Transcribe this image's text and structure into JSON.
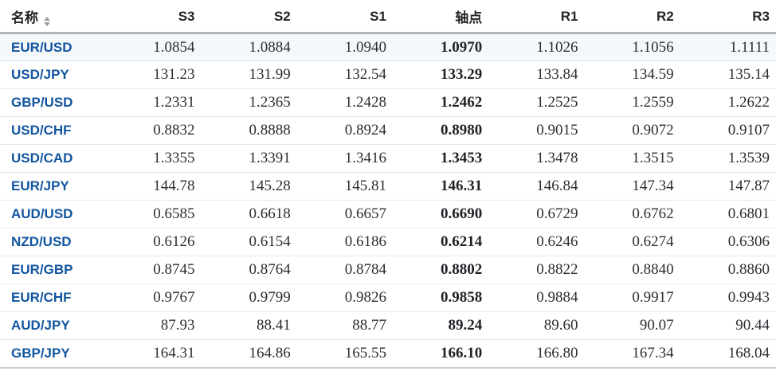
{
  "ui_state": {
    "highlighted_row": "EUR/USD"
  },
  "colors": {
    "pair_link": "#1256a0",
    "header_text": "#232526",
    "number_text": "#2b2e33",
    "header_border": "#b0b3b8",
    "row_divider": "#e6e8ea"
  },
  "table": {
    "columns": [
      {
        "key": "name",
        "label": "名称",
        "sortable_icon": "sort-arrows-icon"
      },
      {
        "key": "s3",
        "label": "S3"
      },
      {
        "key": "s2",
        "label": "S2"
      },
      {
        "key": "s1",
        "label": "S1"
      },
      {
        "key": "pivot",
        "label": "轴点"
      },
      {
        "key": "r1",
        "label": "R1"
      },
      {
        "key": "r2",
        "label": "R2"
      },
      {
        "key": "r3",
        "label": "R3"
      }
    ],
    "rows": [
      {
        "name": "EUR/USD",
        "values": [
          "1.0854",
          "1.0884",
          "1.0940",
          "1.0970",
          "1.1026",
          "1.1056",
          "1.1111"
        ]
      },
      {
        "name": "USD/JPY",
        "values": [
          "131.23",
          "131.99",
          "132.54",
          "133.29",
          "133.84",
          "134.59",
          "135.14"
        ]
      },
      {
        "name": "GBP/USD",
        "values": [
          "1.2331",
          "1.2365",
          "1.2428",
          "1.2462",
          "1.2525",
          "1.2559",
          "1.2622"
        ]
      },
      {
        "name": "USD/CHF",
        "values": [
          "0.8832",
          "0.8888",
          "0.8924",
          "0.8980",
          "0.9015",
          "0.9072",
          "0.9107"
        ]
      },
      {
        "name": "USD/CAD",
        "values": [
          "1.3355",
          "1.3391",
          "1.3416",
          "1.3453",
          "1.3478",
          "1.3515",
          "1.3539"
        ]
      },
      {
        "name": "EUR/JPY",
        "values": [
          "144.78",
          "145.28",
          "145.81",
          "146.31",
          "146.84",
          "147.34",
          "147.87"
        ]
      },
      {
        "name": "AUD/USD",
        "values": [
          "0.6585",
          "0.6618",
          "0.6657",
          "0.6690",
          "0.6729",
          "0.6762",
          "0.6801"
        ]
      },
      {
        "name": "NZD/USD",
        "values": [
          "0.6126",
          "0.6154",
          "0.6186",
          "0.6214",
          "0.6246",
          "0.6274",
          "0.6306"
        ]
      },
      {
        "name": "EUR/GBP",
        "values": [
          "0.8745",
          "0.8764",
          "0.8784",
          "0.8802",
          "0.8822",
          "0.8840",
          "0.8860"
        ]
      },
      {
        "name": "EUR/CHF",
        "values": [
          "0.9767",
          "0.9799",
          "0.9826",
          "0.9858",
          "0.9884",
          "0.9917",
          "0.9943"
        ]
      },
      {
        "name": "AUD/JPY",
        "values": [
          "87.93",
          "88.41",
          "88.77",
          "89.24",
          "89.60",
          "90.07",
          "90.44"
        ]
      },
      {
        "name": "GBP/JPY",
        "values": [
          "164.31",
          "164.86",
          "165.55",
          "166.10",
          "166.80",
          "167.34",
          "168.04"
        ]
      }
    ]
  }
}
